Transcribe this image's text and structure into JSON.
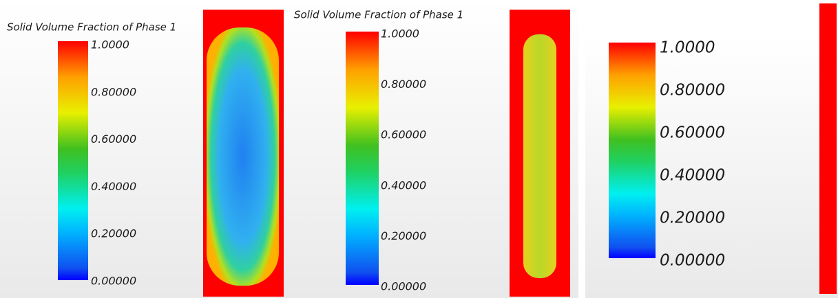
{
  "panels": [
    {
      "title": "Solid Volume Fraction of Phase 1",
      "ticks": [
        "1.0000",
        "0.80000",
        "0.60000",
        "0.40000",
        "0.20000",
        "0.00000"
      ]
    },
    {
      "title": "Solid Volume Fraction of Phase 1",
      "ticks": [
        "1.0000",
        "0.80000",
        "0.60000",
        "0.40000",
        "0.20000",
        "0.00000"
      ]
    },
    {
      "ticks": [
        "1.0000",
        "0.80000",
        "0.60000",
        "0.40000",
        "0.20000",
        "0.00000"
      ]
    }
  ]
}
